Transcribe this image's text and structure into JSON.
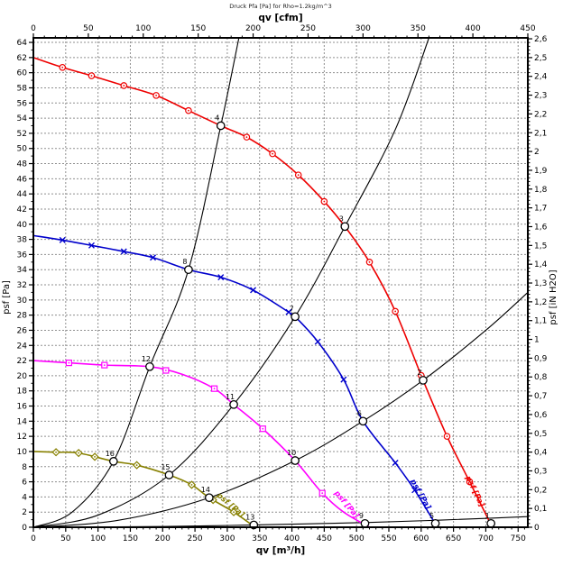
{
  "title": "Druck Pfa [Pa] for Rho=1.2kg/m^3",
  "chart_data": {
    "type": "line",
    "title": "Druck Pfa [Pa] for Rho=1.2kg/m^3",
    "axes": {
      "top": {
        "label": "qv [cfm]",
        "min": 0,
        "max": 450,
        "major": 50,
        "minor": 10
      },
      "bottom": {
        "label": "qv [m³/h]",
        "min": 0,
        "max": 765,
        "tick_max": 750,
        "major": 50,
        "minor": 10
      },
      "left": {
        "label": "psf [Pa]",
        "min": 0,
        "max": 64.6,
        "tick_max": 64,
        "major": 2,
        "minor": 1
      },
      "right": {
        "label": "psf [iN H2O]",
        "min": 0,
        "max": 2.605,
        "tick_max": 2.6,
        "major": 0.1,
        "minor": 0.02,
        "decimal": "comma"
      }
    },
    "grid": {
      "x_every": 50,
      "y_every": 2,
      "style": "dashed",
      "color": "#8f8f8f"
    },
    "series": [
      {
        "name": "fan-curve-speed-1",
        "color": "#ee0000",
        "marker": "circle",
        "curve_label": "psf [Pa]",
        "points": [
          [
            0,
            62
          ],
          [
            45,
            60.7
          ],
          [
            90,
            59.6
          ],
          [
            140,
            58.3
          ],
          [
            190,
            57
          ],
          [
            240,
            55
          ],
          [
            290,
            53
          ],
          [
            330,
            51.5
          ],
          [
            370,
            49.3
          ],
          [
            410,
            46.5
          ],
          [
            450,
            43
          ],
          [
            482,
            39.7
          ],
          [
            520,
            35
          ],
          [
            560,
            28.5
          ],
          [
            603,
            19.4
          ],
          [
            640,
            12
          ],
          [
            675,
            6
          ],
          [
            710,
            0
          ]
        ],
        "marker_qv": [
          45,
          90,
          140,
          190,
          240,
          330,
          370,
          410,
          450,
          520,
          560,
          600,
          640,
          675
        ],
        "label_at": [
          680,
          4.6
        ],
        "label_angle": 64
      },
      {
        "name": "fan-curve-speed-2",
        "color": "#0000cc",
        "marker": "x",
        "curve_label": "psf [Pa]",
        "points": [
          [
            0,
            38.5
          ],
          [
            45,
            37.9
          ],
          [
            90,
            37.2
          ],
          [
            140,
            36.4
          ],
          [
            185,
            35.6
          ],
          [
            240,
            34
          ],
          [
            290,
            33
          ],
          [
            340,
            31.3
          ],
          [
            395,
            28.4
          ],
          [
            405,
            27.8
          ],
          [
            440,
            24.5
          ],
          [
            480,
            19.5
          ],
          [
            510,
            14
          ],
          [
            560,
            8.5
          ],
          [
            590,
            4.9
          ],
          [
            625,
            0
          ]
        ],
        "marker_qv": [
          45,
          90,
          140,
          185,
          240,
          290,
          340,
          395,
          440,
          480,
          560,
          590
        ],
        "label_at": [
          596,
          4.2
        ],
        "label_angle": 60
      },
      {
        "name": "fan-curve-speed-3",
        "color": "#ff00ff",
        "marker": "square",
        "curve_label": "psf [Pa]",
        "points": [
          [
            0,
            22
          ],
          [
            55,
            21.7
          ],
          [
            110,
            21.4
          ],
          [
            180,
            21.2
          ],
          [
            230,
            20.2
          ],
          [
            280,
            18.3
          ],
          [
            310,
            16.2
          ],
          [
            355,
            13
          ],
          [
            405,
            8.8
          ],
          [
            447,
            4.5
          ],
          [
            480,
            2
          ],
          [
            520,
            0
          ]
        ],
        "marker_qv": [
          55,
          110,
          205,
          280,
          355,
          447
        ],
        "label_at": [
          482,
          2.8
        ],
        "label_angle": 50
      },
      {
        "name": "fan-curve-speed-4",
        "color": "#878000",
        "marker": "diamond",
        "curve_label": "psf [Pa]",
        "points": [
          [
            0,
            10
          ],
          [
            35,
            9.9
          ],
          [
            70,
            9.8
          ],
          [
            124,
            8.7
          ],
          [
            160,
            8.2
          ],
          [
            210,
            6.9
          ],
          [
            245,
            5.6
          ],
          [
            272,
            3.9
          ],
          [
            310,
            2
          ],
          [
            343,
            0
          ]
        ],
        "marker_qv": [
          35,
          70,
          95,
          160,
          245,
          278,
          310
        ],
        "label_at": [
          303,
          2.7
        ],
        "label_angle": 40
      }
    ],
    "system_curves": [
      {
        "name": "system-curve-A",
        "points": [
          [
            0,
            0
          ],
          [
            60,
            2
          ],
          [
            124,
            8.7
          ],
          [
            180,
            21.2
          ],
          [
            240,
            34
          ],
          [
            290,
            53
          ],
          [
            318,
            64.6
          ]
        ]
      },
      {
        "name": "system-curve-B",
        "points": [
          [
            0,
            0
          ],
          [
            100,
            1.6
          ],
          [
            210,
            6.9
          ],
          [
            310,
            16.2
          ],
          [
            405,
            27.8
          ],
          [
            482,
            39.7
          ],
          [
            560,
            52.5
          ],
          [
            612,
            64.6
          ]
        ]
      },
      {
        "name": "system-curve-C",
        "points": [
          [
            0,
            0
          ],
          [
            130,
            0.9
          ],
          [
            272,
            3.9
          ],
          [
            405,
            8.8
          ],
          [
            510,
            14
          ],
          [
            603,
            19.4
          ],
          [
            700,
            26
          ],
          [
            765,
            31
          ]
        ]
      },
      {
        "name": "system-curve-D",
        "points": [
          [
            0,
            0
          ],
          [
            200,
            0.1
          ],
          [
            341,
            0.3
          ],
          [
            513,
            0.62
          ],
          [
            622,
            0.92
          ],
          [
            708,
            1.2
          ],
          [
            765,
            1.4
          ]
        ]
      }
    ],
    "operating_points": [
      {
        "n": "4",
        "qv": 290,
        "pa": 53
      },
      {
        "n": "8",
        "qv": 240,
        "pa": 34
      },
      {
        "n": "12",
        "qv": 180,
        "pa": 21.2
      },
      {
        "n": "16",
        "qv": 124,
        "pa": 8.7
      },
      {
        "n": "3",
        "qv": 482,
        "pa": 39.7
      },
      {
        "n": "7",
        "qv": 405,
        "pa": 27.8
      },
      {
        "n": "11",
        "qv": 310,
        "pa": 16.2
      },
      {
        "n": "15",
        "qv": 210,
        "pa": 6.9
      },
      {
        "n": "2",
        "qv": 603,
        "pa": 19.4
      },
      {
        "n": "6",
        "qv": 510,
        "pa": 14
      },
      {
        "n": "10",
        "qv": 405,
        "pa": 8.8
      },
      {
        "n": "14",
        "qv": 272,
        "pa": 3.9
      },
      {
        "n": "1",
        "qv": 708,
        "pa": 0.5
      },
      {
        "n": "5",
        "qv": 622,
        "pa": 0.5
      },
      {
        "n": "9",
        "qv": 513,
        "pa": 0.5
      },
      {
        "n": "13",
        "qv": 341,
        "pa": 0.3
      }
    ]
  }
}
